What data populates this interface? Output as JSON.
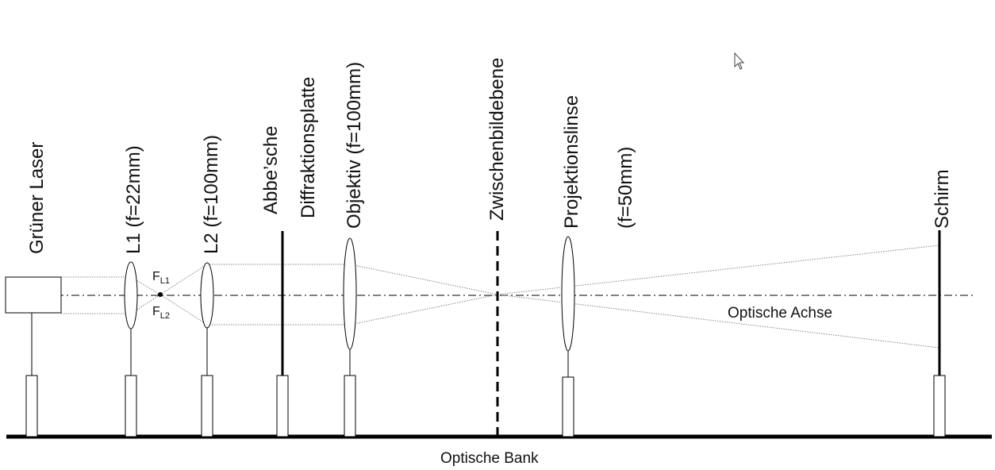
{
  "components": {
    "laser": "Grüner Laser",
    "l1": "L1 (f=22mm)",
    "l2": "L2 (f=100mm)",
    "abbe_1": "Abbe’sche",
    "abbe_2": "Diffraktionsplatte",
    "objective": "Objektiv (f=100mm)",
    "intermediate_plane": "Zwischenbildebene",
    "projection_1": "Projektionslinse",
    "projection_2": "(f=50mm)",
    "screen": "Schirm"
  },
  "focal_points": {
    "f1_main": "F",
    "f1_sub": "L1",
    "f2_main": "F",
    "f2_sub": "L2"
  },
  "axis_label": "Optische Achse",
  "bench_label": "Optische Bank",
  "icons": {
    "cursor": "mouse-cursor-icon"
  }
}
